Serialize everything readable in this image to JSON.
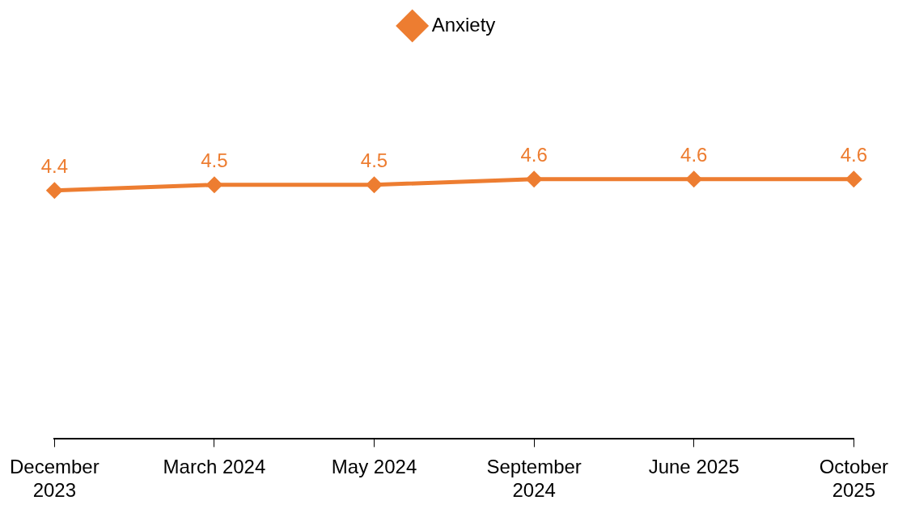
{
  "chart_data": {
    "type": "line",
    "categories": [
      "December 2023",
      "March 2024",
      "May 2024",
      "September 2024",
      "June 2025",
      "October 2025"
    ],
    "series": [
      {
        "name": "Anxiety",
        "color": "#ed7d31",
        "values": [
          4.4,
          4.5,
          4.5,
          4.6,
          4.6,
          4.6
        ]
      }
    ],
    "data_labels": true,
    "legend": "top",
    "marker": "diamond",
    "line_style": "solid",
    "grid": false
  }
}
